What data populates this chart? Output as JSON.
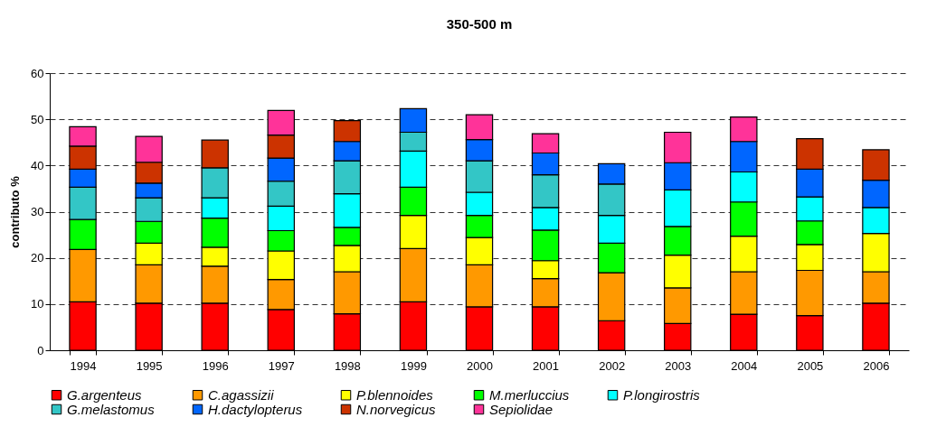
{
  "chart_data": {
    "type": "bar",
    "title": "350-500 m",
    "ylabel": "contributo %",
    "stacked": true,
    "grid": "y",
    "legend": "bottom",
    "categories": [
      "1994",
      "1995",
      "1996",
      "1997",
      "1998",
      "1999",
      "2000",
      "2001",
      "2002",
      "2003",
      "2004",
      "2005",
      "2006"
    ],
    "ylim": [
      0,
      60
    ],
    "yticks": [
      0,
      10,
      20,
      30,
      40,
      50,
      60
    ],
    "series": [
      {
        "name": "G.argenteus",
        "color": "#ff0000",
        "values": [
          10.5,
          10.2,
          10.2,
          8.8,
          7.9,
          10.5,
          9.4,
          9.4,
          6.4,
          5.8,
          7.8,
          7.5,
          10.2
        ]
      },
      {
        "name": "C.agassizii",
        "color": "#ff9900",
        "values": [
          11.3,
          8.3,
          8.0,
          6.5,
          9.1,
          11.5,
          9.1,
          6.1,
          10.4,
          7.7,
          9.2,
          9.8,
          6.8
        ]
      },
      {
        "name": "P.blennoides",
        "color": "#ffff00",
        "values": [
          null,
          4.7,
          4.1,
          6.2,
          5.7,
          7.2,
          5.9,
          3.9,
          null,
          7.1,
          7.7,
          5.6,
          8.3
        ]
      },
      {
        "name": "M.merluccius",
        "color": "#00ff00",
        "values": [
          6.5,
          4.7,
          6.3,
          4.4,
          3.9,
          6.1,
          4.8,
          6.6,
          6.4,
          6.2,
          7.4,
          5.1,
          null
        ]
      },
      {
        "name": "P.longirostris",
        "color": "#00ffff",
        "values": [
          null,
          null,
          4.4,
          5.3,
          7.3,
          7.8,
          5.0,
          4.9,
          6.0,
          7.9,
          6.5,
          5.2,
          5.6
        ]
      },
      {
        "name": "G.melastomus",
        "color": "#33c6c6",
        "values": [
          7.0,
          5.1,
          6.5,
          5.4,
          7.1,
          4.1,
          6.8,
          7.1,
          6.8,
          null,
          null,
          null,
          null
        ]
      },
      {
        "name": "H.dactylopterus",
        "color": "#0066ff",
        "values": [
          3.9,
          3.2,
          null,
          5.0,
          4.2,
          5.1,
          4.6,
          4.7,
          4.4,
          5.9,
          6.6,
          6.0,
          5.9
        ]
      },
      {
        "name": "N.norvegicus",
        "color": "#cc3300",
        "values": [
          5.0,
          4.5,
          6.0,
          5.0,
          4.5,
          null,
          null,
          null,
          null,
          null,
          null,
          6.6,
          6.6
        ]
      },
      {
        "name": "Sepiolidae",
        "color": "#ff3399",
        "values": [
          4.2,
          5.6,
          null,
          5.3,
          null,
          null,
          5.4,
          4.2,
          null,
          6.6,
          5.3,
          null,
          null
        ]
      }
    ]
  }
}
